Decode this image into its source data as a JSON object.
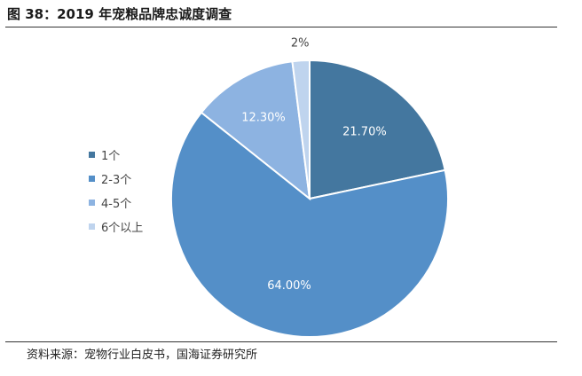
{
  "title": "图 38：2019 年宠粮品牌忠诚度调查",
  "source": "资料来源：宠物行业白皮书，国海证券研究所",
  "chart_data": {
    "type": "pie",
    "slices": [
      {
        "label": "1个",
        "value": 21.7,
        "value_label": "21.70%",
        "color": "#44779f"
      },
      {
        "label": "2-3个",
        "value": 64.0,
        "value_label": "64.00%",
        "color": "#548fc8"
      },
      {
        "label": "4-5个",
        "value": 12.3,
        "value_label": "12.30%",
        "color": "#8db3e1"
      },
      {
        "label": "6个以上",
        "value": 2.0,
        "value_label": "2%",
        "color": "#bfd4ee"
      }
    ],
    "legend_position": "left"
  }
}
